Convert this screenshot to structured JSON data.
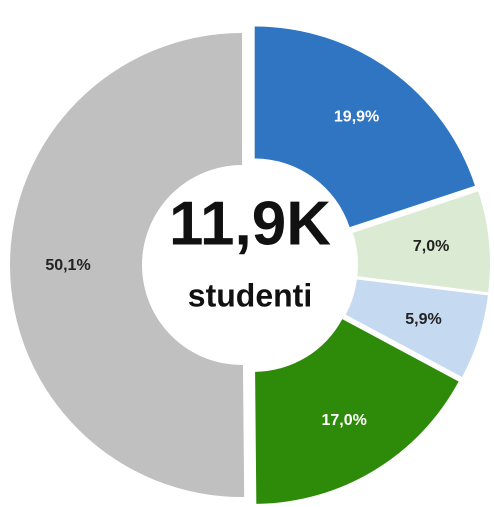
{
  "chart_data": {
    "type": "donut",
    "center_value": "11,9K",
    "center_label": "studenti",
    "values": [
      19.9,
      7.0,
      5.9,
      17.0,
      50.1
    ],
    "value_labels": [
      "19,9%",
      "7,0%",
      "5,9%",
      "17,0%",
      "50,1%"
    ],
    "colors": [
      "#2f75c2",
      "#dbead3",
      "#c5d9f0",
      "#2e8b0a",
      "#c0c0c0"
    ],
    "label_colors": [
      "#ffffff",
      "#222222",
      "#222222",
      "#ffffff",
      "#222222"
    ]
  }
}
